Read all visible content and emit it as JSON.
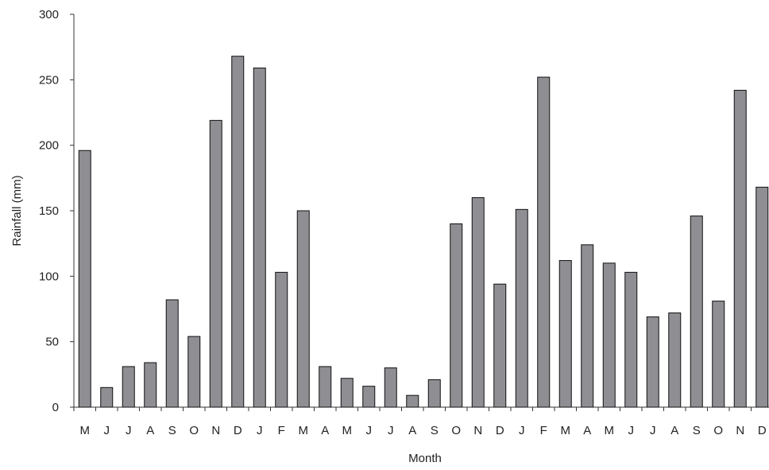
{
  "chart_data": {
    "type": "bar",
    "title": "",
    "xlabel": "Month",
    "ylabel": "Rainfall (mm)",
    "ylim": [
      0,
      300
    ],
    "yticks": [
      0,
      50,
      100,
      150,
      200,
      250,
      300
    ],
    "grid": false,
    "legend": "none",
    "bar_color": "#8e8e93",
    "bar_edge_color": "#111111",
    "categories": [
      "M",
      "J",
      "J",
      "A",
      "S",
      "O",
      "N",
      "D",
      "J",
      "F",
      "M",
      "A",
      "M",
      "J",
      "J",
      "A",
      "S",
      "O",
      "N",
      "D",
      "J",
      "F",
      "M",
      "A",
      "M",
      "J",
      "J",
      "A",
      "S",
      "O",
      "N",
      "D"
    ],
    "values": [
      196,
      15,
      31,
      34,
      82,
      54,
      219,
      268,
      259,
      103,
      150,
      31,
      22,
      16,
      30,
      9,
      21,
      140,
      160,
      94,
      151,
      252,
      112,
      124,
      110,
      103,
      69,
      72,
      146,
      81,
      242,
      168
    ]
  }
}
